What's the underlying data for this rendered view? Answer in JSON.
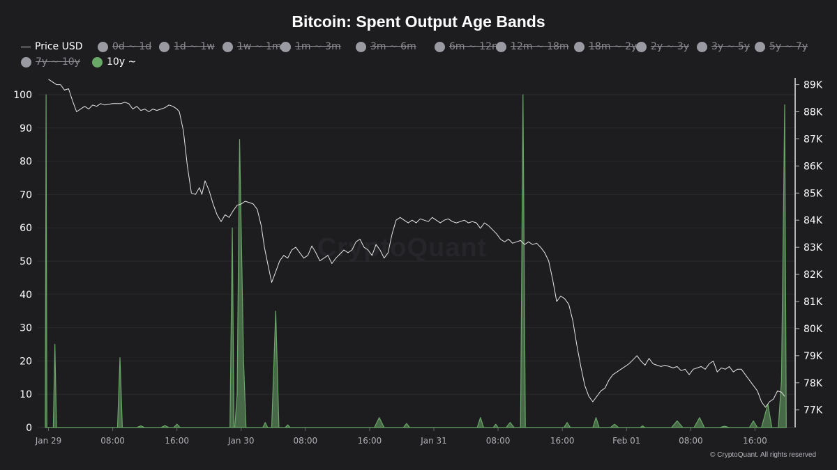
{
  "chart_data": {
    "type": "area",
    "title": "Bitcoin: Spent Output Age Bands",
    "legend": [
      {
        "label": "Price USD",
        "kind": "line",
        "active": true,
        "color": "#d9d9d9"
      },
      {
        "label": "0d ~ 1d",
        "kind": "dot",
        "active": false,
        "color": "#9a9aa3"
      },
      {
        "label": "1d ~ 1w",
        "kind": "dot",
        "active": false,
        "color": "#9a9aa3"
      },
      {
        "label": "1w ~ 1m",
        "kind": "dot",
        "active": false,
        "color": "#9a9aa3"
      },
      {
        "label": "1m ~ 3m",
        "kind": "dot",
        "active": false,
        "color": "#9a9aa3"
      },
      {
        "label": "3m ~ 6m",
        "kind": "dot",
        "active": false,
        "color": "#9a9aa3"
      },
      {
        "label": "6m ~ 12m",
        "kind": "dot",
        "active": false,
        "color": "#9a9aa3"
      },
      {
        "label": "12m ~ 18m",
        "kind": "dot",
        "active": false,
        "color": "#9a9aa3"
      },
      {
        "label": "18m ~ 2y",
        "kind": "dot",
        "active": false,
        "color": "#9a9aa3"
      },
      {
        "label": "2y ~ 3y",
        "kind": "dot",
        "active": false,
        "color": "#9a9aa3"
      },
      {
        "label": "3y ~ 5y",
        "kind": "dot",
        "active": false,
        "color": "#9a9aa3"
      },
      {
        "label": "5y ~ 7y",
        "kind": "dot",
        "active": false,
        "color": "#9a9aa3"
      },
      {
        "label": "7y ~ 10y",
        "kind": "dot",
        "active": false,
        "color": "#9a9aa3"
      },
      {
        "label": "10y ~",
        "kind": "dot",
        "active": true,
        "color": "#6aa867"
      }
    ],
    "x_ticks": [
      "Jan 29",
      "08:00",
      "16:00",
      "Jan 30",
      "08:00",
      "16:00",
      "Jan 31",
      "08:00",
      "16:00",
      "Feb 01",
      "08:00",
      "16:00"
    ],
    "x_tick_hours": [
      0,
      8,
      16,
      24,
      32,
      40,
      48,
      56,
      64,
      72,
      80,
      88
    ],
    "x_range_hours": [
      -1,
      93
    ],
    "y_left": {
      "ticks": [
        0,
        10,
        20,
        30,
        40,
        50,
        60,
        70,
        80,
        90,
        100
      ],
      "range": [
        0,
        100
      ]
    },
    "y_right": {
      "ticks": [
        "77K",
        "78K",
        "79K",
        "80K",
        "81K",
        "82K",
        "83K",
        "84K",
        "85K",
        "86K",
        "87K",
        "88K",
        "89K"
      ],
      "tick_values": [
        77000,
        78000,
        79000,
        80000,
        81000,
        82000,
        83000,
        84000,
        85000,
        86000,
        87000,
        88000,
        89000
      ],
      "range": [
        76350,
        89400
      ]
    },
    "series": [
      {
        "name": "10y ~",
        "axis": "left",
        "color": "#6aa867",
        "points": [
          [
            -0.4,
            0
          ],
          [
            -0.3,
            100
          ],
          [
            -0.2,
            0
          ],
          [
            0.6,
            0
          ],
          [
            0.8,
            25
          ],
          [
            1.0,
            0
          ],
          [
            8.6,
            0
          ],
          [
            8.9,
            21
          ],
          [
            9.2,
            0
          ],
          [
            11,
            0
          ],
          [
            11.5,
            0.5
          ],
          [
            12,
            0
          ],
          [
            14,
            0
          ],
          [
            14.5,
            0.6
          ],
          [
            15,
            0
          ],
          [
            15.6,
            0
          ],
          [
            16,
            1
          ],
          [
            16.4,
            0
          ],
          [
            22.6,
            0
          ],
          [
            22.9,
            60
          ],
          [
            23.1,
            0
          ],
          [
            23.2,
            0
          ],
          [
            23.5,
            10
          ],
          [
            23.8,
            86.5
          ],
          [
            24.3,
            20
          ],
          [
            24.6,
            0
          ],
          [
            26.7,
            0
          ],
          [
            27,
            1.5
          ],
          [
            27.3,
            0
          ],
          [
            27.8,
            0
          ],
          [
            28.3,
            35
          ],
          [
            28.7,
            0
          ],
          [
            29.5,
            0
          ],
          [
            29.8,
            0.8
          ],
          [
            30.1,
            0
          ],
          [
            40.6,
            0
          ],
          [
            41.2,
            3
          ],
          [
            41.8,
            0
          ],
          [
            44.2,
            0
          ],
          [
            44.6,
            1.2
          ],
          [
            45,
            0
          ],
          [
            53.4,
            0
          ],
          [
            53.8,
            3
          ],
          [
            54.2,
            0
          ],
          [
            55.4,
            0
          ],
          [
            55.7,
            1
          ],
          [
            56,
            0
          ],
          [
            57,
            0
          ],
          [
            57.5,
            1.5
          ],
          [
            58,
            0
          ],
          [
            58.8,
            0
          ],
          [
            59.1,
            100
          ],
          [
            59.4,
            0
          ],
          [
            64.2,
            0
          ],
          [
            64.6,
            1.5
          ],
          [
            65,
            0
          ],
          [
            67.8,
            0
          ],
          [
            68.2,
            3
          ],
          [
            68.6,
            0
          ],
          [
            70,
            0
          ],
          [
            70.5,
            1
          ],
          [
            71,
            0
          ],
          [
            73.7,
            0
          ],
          [
            74,
            0.5
          ],
          [
            74.3,
            0
          ],
          [
            77.6,
            0
          ],
          [
            78.3,
            2
          ],
          [
            79,
            0
          ],
          [
            80.4,
            0
          ],
          [
            81.1,
            3
          ],
          [
            81.7,
            0
          ],
          [
            83.6,
            0
          ],
          [
            84.2,
            0.4
          ],
          [
            84.8,
            0
          ],
          [
            87.3,
            0
          ],
          [
            87.8,
            2
          ],
          [
            88.3,
            0
          ],
          [
            88.8,
            0
          ],
          [
            89.6,
            7
          ],
          [
            90.1,
            0
          ],
          [
            90.9,
            0
          ],
          [
            91.3,
            14
          ],
          [
            91.5,
            55
          ],
          [
            91.7,
            97
          ],
          [
            91.9,
            0
          ]
        ]
      },
      {
        "name": "Price USD",
        "axis": "right",
        "color": "#e6e6e6",
        "points": [
          [
            0,
            89200
          ],
          [
            0.5,
            89100
          ],
          [
            1,
            89000
          ],
          [
            1.5,
            89000
          ],
          [
            2,
            88800
          ],
          [
            2.5,
            88850
          ],
          [
            3,
            88400
          ],
          [
            3.5,
            88000
          ],
          [
            4,
            88100
          ],
          [
            4.5,
            88200
          ],
          [
            5,
            88100
          ],
          [
            5.5,
            88250
          ],
          [
            6,
            88200
          ],
          [
            6.5,
            88300
          ],
          [
            7,
            88250
          ],
          [
            8,
            88300
          ],
          [
            9,
            88300
          ],
          [
            9.5,
            88350
          ],
          [
            10,
            88300
          ],
          [
            10.5,
            88100
          ],
          [
            11,
            88200
          ],
          [
            11.5,
            88050
          ],
          [
            12,
            88100
          ],
          [
            12.5,
            88000
          ],
          [
            13,
            88100
          ],
          [
            13.5,
            88050
          ],
          [
            14,
            88100
          ],
          [
            14.5,
            88150
          ],
          [
            15,
            88250
          ],
          [
            15.5,
            88200
          ],
          [
            16,
            88100
          ],
          [
            16.3,
            88000
          ],
          [
            16.8,
            87300
          ],
          [
            17.3,
            86000
          ],
          [
            17.8,
            85000
          ],
          [
            18.3,
            84950
          ],
          [
            18.8,
            85200
          ],
          [
            19.1,
            84950
          ],
          [
            19.5,
            85450
          ],
          [
            20,
            85100
          ],
          [
            20.5,
            84600
          ],
          [
            21,
            84200
          ],
          [
            21.5,
            83950
          ],
          [
            22,
            84200
          ],
          [
            22.5,
            84100
          ],
          [
            23,
            84350
          ],
          [
            23.5,
            84550
          ],
          [
            24,
            84600
          ],
          [
            24.5,
            84700
          ],
          [
            25,
            84650
          ],
          [
            25.5,
            84600
          ],
          [
            26,
            84400
          ],
          [
            26.5,
            83800
          ],
          [
            26.9,
            83000
          ],
          [
            27.3,
            82400
          ],
          [
            27.8,
            81700
          ],
          [
            28.3,
            82100
          ],
          [
            28.8,
            82500
          ],
          [
            29.3,
            82700
          ],
          [
            29.8,
            82600
          ],
          [
            30.3,
            82900
          ],
          [
            30.8,
            83000
          ],
          [
            31.3,
            82800
          ],
          [
            31.8,
            82600
          ],
          [
            32.3,
            82700
          ],
          [
            32.8,
            83050
          ],
          [
            33.3,
            82800
          ],
          [
            33.8,
            82500
          ],
          [
            34.3,
            82600
          ],
          [
            34.8,
            82700
          ],
          [
            35.3,
            82400
          ],
          [
            35.8,
            82600
          ],
          [
            36.3,
            82750
          ],
          [
            36.8,
            82900
          ],
          [
            37.3,
            82800
          ],
          [
            37.8,
            82900
          ],
          [
            38.3,
            83200
          ],
          [
            38.8,
            83300
          ],
          [
            39.3,
            83000
          ],
          [
            39.8,
            82900
          ],
          [
            40.3,
            82700
          ],
          [
            40.8,
            83100
          ],
          [
            41.3,
            82900
          ],
          [
            41.8,
            82600
          ],
          [
            42.3,
            82800
          ],
          [
            42.8,
            83500
          ],
          [
            43.3,
            84000
          ],
          [
            43.8,
            84100
          ],
          [
            44.3,
            84000
          ],
          [
            44.8,
            83900
          ],
          [
            45.3,
            84000
          ],
          [
            45.8,
            83900
          ],
          [
            46.3,
            84050
          ],
          [
            46.8,
            84000
          ],
          [
            47.3,
            83950
          ],
          [
            47.8,
            84100
          ],
          [
            48.3,
            84000
          ],
          [
            48.8,
            83900
          ],
          [
            49.3,
            84000
          ],
          [
            49.8,
            84050
          ],
          [
            50.3,
            83950
          ],
          [
            50.8,
            83900
          ],
          [
            51.3,
            83950
          ],
          [
            51.8,
            84000
          ],
          [
            52.3,
            83900
          ],
          [
            52.8,
            83950
          ],
          [
            53.3,
            83900
          ],
          [
            53.8,
            83700
          ],
          [
            54.3,
            83900
          ],
          [
            54.8,
            83800
          ],
          [
            55.3,
            83650
          ],
          [
            55.8,
            83500
          ],
          [
            56.3,
            83300
          ],
          [
            56.8,
            83200
          ],
          [
            57.3,
            83300
          ],
          [
            57.8,
            83150
          ],
          [
            58.3,
            83200
          ],
          [
            58.8,
            83250
          ],
          [
            59.3,
            83100
          ],
          [
            59.8,
            83200
          ],
          [
            60.3,
            83100
          ],
          [
            60.8,
            83150
          ],
          [
            61.3,
            83000
          ],
          [
            61.8,
            82800
          ],
          [
            62.3,
            82500
          ],
          [
            62.8,
            81800
          ],
          [
            63.3,
            81000
          ],
          [
            63.8,
            81200
          ],
          [
            64.3,
            81100
          ],
          [
            64.8,
            80900
          ],
          [
            65.3,
            80300
          ],
          [
            65.8,
            79400
          ],
          [
            66.3,
            78600
          ],
          [
            66.8,
            77900
          ],
          [
            67.3,
            77500
          ],
          [
            67.8,
            77300
          ],
          [
            68.3,
            77500
          ],
          [
            68.8,
            77700
          ],
          [
            69.3,
            77800
          ],
          [
            69.8,
            78100
          ],
          [
            70.3,
            78300
          ],
          [
            70.8,
            78400
          ],
          [
            71.3,
            78500
          ],
          [
            71.8,
            78600
          ],
          [
            72.3,
            78700
          ],
          [
            72.8,
            78850
          ],
          [
            73.3,
            79000
          ],
          [
            73.8,
            78800
          ],
          [
            74.3,
            78650
          ],
          [
            74.8,
            78900
          ],
          [
            75.3,
            78700
          ],
          [
            75.8,
            78650
          ],
          [
            76.3,
            78600
          ],
          [
            76.8,
            78650
          ],
          [
            77.3,
            78600
          ],
          [
            77.8,
            78550
          ],
          [
            78.3,
            78600
          ],
          [
            78.8,
            78450
          ],
          [
            79.3,
            78500
          ],
          [
            79.8,
            78300
          ],
          [
            80.3,
            78500
          ],
          [
            80.8,
            78550
          ],
          [
            81.3,
            78600
          ],
          [
            81.8,
            78500
          ],
          [
            82.3,
            78700
          ],
          [
            82.8,
            78800
          ],
          [
            83.3,
            78400
          ],
          [
            83.8,
            78550
          ],
          [
            84.3,
            78500
          ],
          [
            84.8,
            78600
          ],
          [
            85.3,
            78400
          ],
          [
            85.8,
            78500
          ],
          [
            86.3,
            78500
          ],
          [
            86.8,
            78300
          ],
          [
            87.3,
            78100
          ],
          [
            87.8,
            77900
          ],
          [
            88.3,
            77700
          ],
          [
            88.8,
            77300
          ],
          [
            89.3,
            77100
          ],
          [
            89.8,
            77300
          ],
          [
            90.3,
            77400
          ],
          [
            90.8,
            77700
          ],
          [
            91.3,
            77650
          ],
          [
            91.7,
            77500
          ]
        ]
      }
    ],
    "watermark": "CryptoQuant",
    "footer": "© CryptoQuant. All rights reserved",
    "grid": true
  }
}
